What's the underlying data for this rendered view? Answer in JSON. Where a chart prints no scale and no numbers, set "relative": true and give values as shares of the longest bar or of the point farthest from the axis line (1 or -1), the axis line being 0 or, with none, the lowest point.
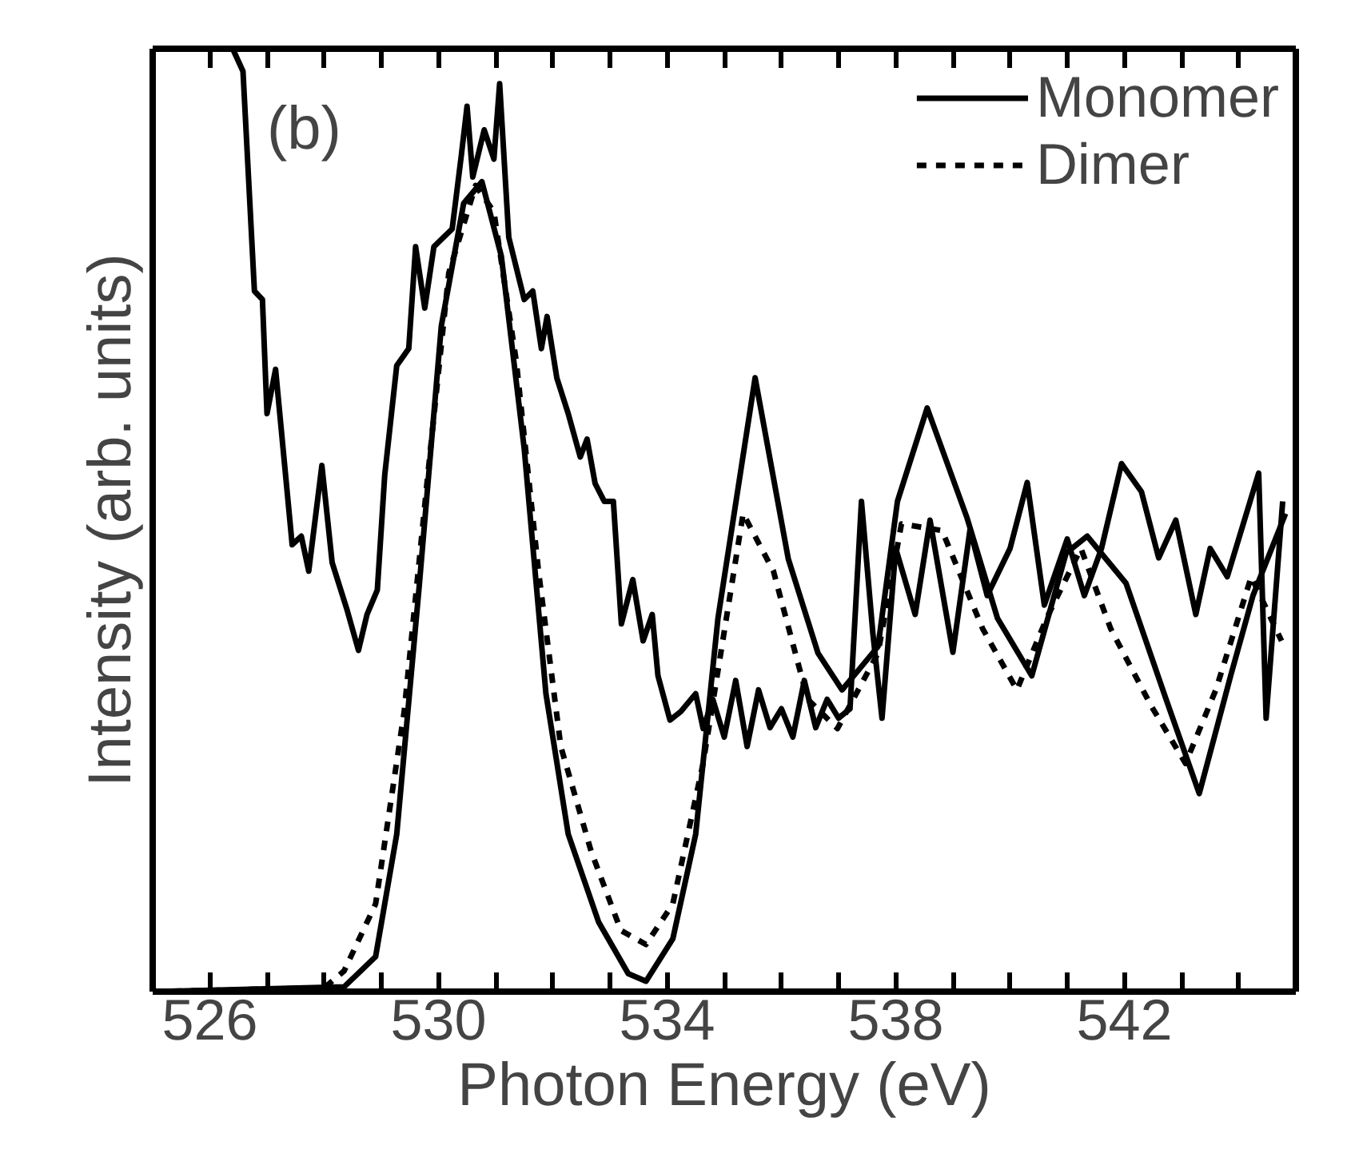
{
  "chart_data": {
    "type": "line",
    "relative": true,
    "xlabel": "Photon Energy (eV)",
    "ylabel": "Intensity (arb. units)",
    "annotations": [
      "(b)"
    ],
    "xlim": [
      525,
      545
    ],
    "xticks": [
      {
        "value": 525,
        "label": null
      },
      526,
      {
        "value": 527,
        "label": null
      },
      {
        "value": 528,
        "label": null
      },
      {
        "value": 529,
        "label": null
      },
      530,
      {
        "value": 531,
        "label": null
      },
      {
        "value": 532,
        "label": null
      },
      {
        "value": 533,
        "label": null
      },
      534,
      {
        "value": 535,
        "label": null
      },
      {
        "value": 536,
        "label": null
      },
      {
        "value": 537,
        "label": null
      },
      538,
      {
        "value": 539,
        "label": null
      },
      {
        "value": 540,
        "label": null
      },
      {
        "value": 541,
        "label": null
      },
      542,
      {
        "value": 543,
        "label": null
      },
      {
        "value": 544,
        "label": null
      }
    ],
    "legend": "top right",
    "grid": false,
    "series": [
      {
        "color": "#000000",
        "line_style": "solid",
        "x": [
          526.4,
          526.58,
          526.78,
          526.92,
          527.0,
          527.15,
          527.44,
          527.6,
          527.73,
          527.96,
          528.14,
          528.4,
          528.6,
          528.75,
          528.93,
          529.06,
          529.27,
          529.48,
          529.6,
          529.76,
          529.92,
          530.24,
          530.4,
          530.5,
          530.6,
          530.8,
          530.97,
          531.07,
          531.23,
          531.5,
          531.65,
          531.8,
          531.9,
          532.07,
          532.27,
          532.48,
          532.6,
          532.74,
          532.9,
          533.06,
          533.2,
          533.4,
          533.58,
          533.74,
          533.84,
          534.05,
          534.24,
          534.5,
          534.63,
          534.8,
          535.0,
          535.2,
          535.4,
          535.6,
          535.8,
          536.0,
          536.2,
          536.4,
          536.6,
          536.8,
          537.0,
          537.2,
          537.4,
          537.6,
          537.76,
          538.0,
          538.34,
          538.6,
          539.0,
          539.3,
          539.6,
          540.0,
          540.3,
          540.6,
          541.0,
          541.3,
          541.6,
          541.95,
          542.3,
          542.6,
          542.9,
          543.25,
          543.5,
          543.8,
          544.1,
          544.35,
          544.48,
          544.77
        ],
        "values": [
          1.0,
          0.976,
          0.743,
          0.734,
          0.613,
          0.66,
          0.474,
          0.483,
          0.446,
          0.558,
          0.455,
          0.405,
          0.362,
          0.4,
          0.426,
          0.548,
          0.664,
          0.682,
          0.79,
          0.725,
          0.79,
          0.809,
          0.887,
          0.939,
          0.864,
          0.914,
          0.883,
          0.963,
          0.8,
          0.734,
          0.743,
          0.682,
          0.716,
          0.651,
          0.613,
          0.567,
          0.586,
          0.539,
          0.52,
          0.52,
          0.39,
          0.437,
          0.372,
          0.4,
          0.335,
          0.288,
          0.297,
          0.316,
          0.279,
          0.31,
          0.27,
          0.33,
          0.26,
          0.32,
          0.28,
          0.3,
          0.27,
          0.33,
          0.28,
          0.31,
          0.29,
          0.3,
          0.52,
          0.38,
          0.29,
          0.47,
          0.4,
          0.5,
          0.36,
          0.49,
          0.42,
          0.47,
          0.54,
          0.41,
          0.48,
          0.42,
          0.47,
          0.56,
          0.53,
          0.46,
          0.5,
          0.4,
          0.47,
          0.44,
          0.5,
          0.55,
          0.29,
          0.52
        ]
      },
      {
        "name": "Monomer",
        "color": "#000000",
        "line_style": "solid",
        "x": [
          525,
          528.35,
          528.9,
          529.27,
          529.66,
          530.05,
          530.44,
          530.76,
          531.1,
          531.5,
          531.88,
          532.27,
          532.8,
          533.32,
          533.63,
          534.1,
          534.5,
          534.89,
          535.54,
          536.12,
          536.64,
          537.06,
          537.69,
          538.03,
          538.55,
          539.25,
          539.78,
          540.38,
          540.98,
          541.35,
          542.03,
          542.73,
          543.31,
          543.86,
          544.25,
          544.82
        ],
        "values": [
          0.0,
          0.005,
          0.037,
          0.167,
          0.428,
          0.706,
          0.836,
          0.859,
          0.78,
          0.576,
          0.316,
          0.167,
          0.074,
          0.019,
          0.011,
          0.056,
          0.167,
          0.396,
          0.651,
          0.459,
          0.359,
          0.32,
          0.366,
          0.52,
          0.619,
          0.502,
          0.396,
          0.335,
          0.465,
          0.483,
          0.433,
          0.31,
          0.21,
          0.335,
          0.42,
          0.507
        ]
      },
      {
        "name": "Dimer",
        "color": "#000000",
        "line_style": "dashed",
        "x": [
          525,
          528.0,
          528.35,
          528.9,
          529.4,
          529.8,
          530.18,
          530.65,
          530.97,
          531.36,
          531.75,
          532.14,
          532.67,
          533.19,
          533.63,
          534.1,
          534.63,
          535.33,
          535.86,
          536.46,
          536.98,
          537.69,
          538.1,
          538.81,
          539.52,
          540.12,
          540.64,
          541.24,
          541.76,
          542.47,
          543.07,
          543.6,
          544.22,
          544.75
        ],
        "values": [
          0.0,
          0.004,
          0.022,
          0.093,
          0.297,
          0.54,
          0.762,
          0.855,
          0.827,
          0.669,
          0.446,
          0.26,
          0.149,
          0.065,
          0.05,
          0.093,
          0.242,
          0.507,
          0.446,
          0.31,
          0.279,
          0.359,
          0.496,
          0.489,
          0.385,
          0.32,
          0.396,
          0.47,
          0.385,
          0.303,
          0.242,
          0.32,
          0.44,
          0.372
        ]
      }
    ]
  }
}
